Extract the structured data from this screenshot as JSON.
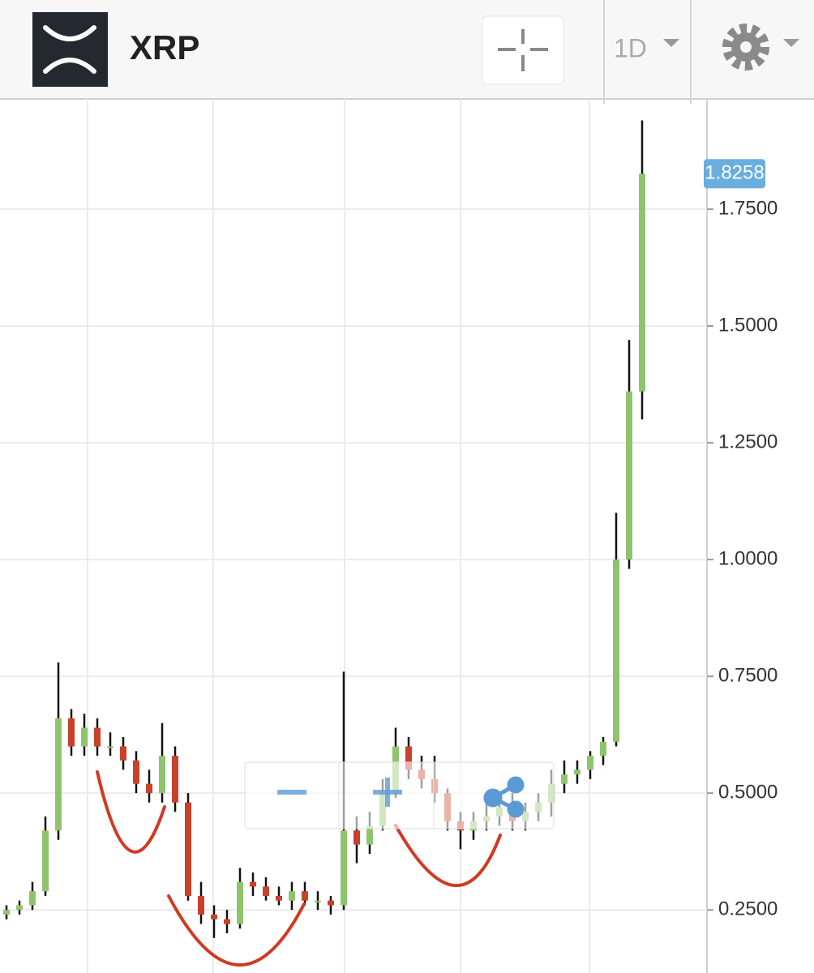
{
  "chart_data": {
    "type": "candlestick",
    "title": "XRP",
    "interval": "1D",
    "price_tag": "1.8258",
    "up_color": "#8fc46e",
    "down_color": "#c9412a",
    "wick_color": "#111111",
    "grid": true,
    "ylim": [
      0.115,
      1.986
    ],
    "yticks": [
      {
        "value": 0.25,
        "label": "0.2500"
      },
      {
        "value": 0.5,
        "label": "0.5000"
      },
      {
        "value": 0.75,
        "label": "0.7500"
      },
      {
        "value": 1.0,
        "label": "1.0000"
      },
      {
        "value": 1.25,
        "label": "1.2500"
      },
      {
        "value": 1.5,
        "label": "1.5000"
      },
      {
        "value": 1.75,
        "label": "1.7500"
      }
    ],
    "open": [
      0.24,
      0.25,
      0.26,
      0.29,
      0.42,
      0.66,
      0.6,
      0.64,
      0.6,
      0.6,
      0.57,
      0.52,
      0.5,
      0.58,
      0.48,
      0.28,
      0.24,
      0.23,
      0.22,
      0.31,
      0.3,
      0.28,
      0.27,
      0.29,
      0.27,
      0.27,
      0.26,
      0.42,
      0.39,
      0.43,
      0.5,
      0.6,
      0.55,
      0.53,
      0.5,
      0.44,
      0.42,
      0.44,
      0.45,
      0.47,
      0.44,
      0.46,
      0.48,
      0.52,
      0.54,
      0.55,
      0.58,
      0.61,
      1.0,
      1.36
    ],
    "high": [
      0.26,
      0.27,
      0.31,
      0.45,
      0.78,
      0.68,
      0.67,
      0.66,
      0.63,
      0.62,
      0.59,
      0.55,
      0.65,
      0.6,
      0.5,
      0.31,
      0.26,
      0.25,
      0.34,
      0.33,
      0.32,
      0.3,
      0.31,
      0.31,
      0.29,
      0.28,
      0.76,
      0.45,
      0.46,
      0.53,
      0.64,
      0.62,
      0.58,
      0.58,
      0.51,
      0.46,
      0.46,
      0.48,
      0.5,
      0.5,
      0.48,
      0.5,
      0.55,
      0.57,
      0.57,
      0.59,
      0.62,
      1.1,
      1.47,
      1.94
    ],
    "low": [
      0.23,
      0.24,
      0.25,
      0.28,
      0.4,
      0.58,
      0.58,
      0.58,
      0.58,
      0.55,
      0.5,
      0.48,
      0.48,
      0.46,
      0.27,
      0.22,
      0.19,
      0.2,
      0.21,
      0.28,
      0.27,
      0.26,
      0.25,
      0.26,
      0.25,
      0.24,
      0.25,
      0.35,
      0.37,
      0.42,
      0.49,
      0.53,
      0.51,
      0.48,
      0.42,
      0.38,
      0.4,
      0.42,
      0.43,
      0.42,
      0.42,
      0.44,
      0.45,
      0.5,
      0.52,
      0.53,
      0.56,
      0.6,
      0.98,
      1.3
    ],
    "close": [
      0.25,
      0.26,
      0.29,
      0.42,
      0.66,
      0.6,
      0.64,
      0.6,
      0.6,
      0.57,
      0.52,
      0.5,
      0.58,
      0.48,
      0.28,
      0.24,
      0.23,
      0.22,
      0.31,
      0.3,
      0.28,
      0.27,
      0.29,
      0.27,
      0.27,
      0.26,
      0.42,
      0.39,
      0.43,
      0.5,
      0.6,
      0.55,
      0.53,
      0.5,
      0.44,
      0.42,
      0.44,
      0.45,
      0.47,
      0.44,
      0.46,
      0.48,
      0.52,
      0.54,
      0.55,
      0.58,
      0.61,
      1.0,
      1.36,
      1.8258
    ]
  }
}
